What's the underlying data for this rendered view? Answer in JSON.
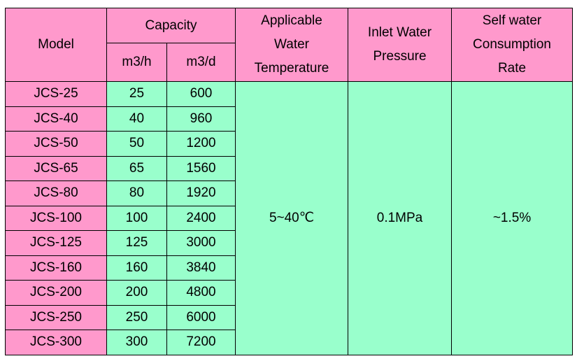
{
  "headers": {
    "model": "Model",
    "capacity": "Capacity",
    "capacity_hour_pre": "m",
    "capacity_hour_sup": "3",
    "capacity_hour_post": "/h",
    "capacity_day_pre": "m",
    "capacity_day_sup": "3",
    "capacity_day_post": "/d",
    "temperature": [
      "Applicable",
      "Water",
      "Temperature"
    ],
    "pressure": [
      "Inlet Water",
      "Pressure"
    ],
    "consumption": [
      "Self water",
      "Consumption",
      "Rate"
    ]
  },
  "rows": [
    {
      "model": "JCS-25",
      "per_hour": "25",
      "per_day": "600"
    },
    {
      "model": "JCS-40",
      "per_hour": "40",
      "per_day": "960"
    },
    {
      "model": "JCS-50",
      "per_hour": "50",
      "per_day": "1200"
    },
    {
      "model": "JCS-65",
      "per_hour": "65",
      "per_day": "1560"
    },
    {
      "model": "JCS-80",
      "per_hour": "80",
      "per_day": "1920"
    },
    {
      "model": "JCS-100",
      "per_hour": "100",
      "per_day": "2400"
    },
    {
      "model": "JCS-125",
      "per_hour": "125",
      "per_day": "3000"
    },
    {
      "model": "JCS-160",
      "per_hour": "160",
      "per_day": "3840"
    },
    {
      "model": "JCS-200",
      "per_hour": "200",
      "per_day": "4800"
    },
    {
      "model": "JCS-250",
      "per_hour": "250",
      "per_day": "6000"
    },
    {
      "model": "JCS-300",
      "per_hour": "300",
      "per_day": "7200"
    }
  ],
  "shared": {
    "temperature": "5~40℃",
    "pressure": "0.1MPa",
    "consumption": "~1.5%"
  },
  "colors": {
    "header_bg": "#ff99cc",
    "model_bg": "#ff99cc",
    "value_bg": "#99ffcc"
  }
}
